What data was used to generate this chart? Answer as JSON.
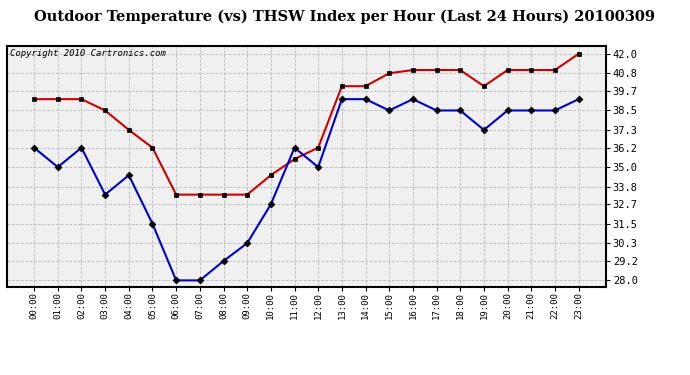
{
  "title": "Outdoor Temperature (vs) THSW Index per Hour (Last 24 Hours) 20100309",
  "copyright": "Copyright 2010 Cartronics.com",
  "hours": [
    "00:00",
    "01:00",
    "02:00",
    "03:00",
    "04:00",
    "05:00",
    "06:00",
    "07:00",
    "08:00",
    "09:00",
    "10:00",
    "11:00",
    "12:00",
    "13:00",
    "14:00",
    "15:00",
    "16:00",
    "17:00",
    "18:00",
    "19:00",
    "20:00",
    "21:00",
    "22:00",
    "23:00"
  ],
  "red_data": [
    39.2,
    39.2,
    39.2,
    38.5,
    37.3,
    36.2,
    33.3,
    33.3,
    33.3,
    33.3,
    34.5,
    35.5,
    36.2,
    40.0,
    40.0,
    40.8,
    41.0,
    41.0,
    41.0,
    40.0,
    41.0,
    41.0,
    41.0,
    42.0
  ],
  "blue_data": [
    36.2,
    35.0,
    36.2,
    33.3,
    34.5,
    31.5,
    28.0,
    28.0,
    29.2,
    30.3,
    32.7,
    36.2,
    35.0,
    39.2,
    39.2,
    38.5,
    39.2,
    38.5,
    38.5,
    37.3,
    38.5,
    38.5,
    38.5,
    39.2
  ],
  "ylim_min": 27.6,
  "ylim_max": 42.5,
  "yticks": [
    28.0,
    29.2,
    30.3,
    31.5,
    32.7,
    33.8,
    35.0,
    36.2,
    37.3,
    38.5,
    39.7,
    40.8,
    42.0
  ],
  "red_color": "#cc0000",
  "blue_color": "#0000cc",
  "bg_color": "#ffffff",
  "plot_bg": "#f0f0f0",
  "grid_color": "#bbbbbb",
  "title_fontsize": 10.5,
  "copyright_fontsize": 6.5
}
